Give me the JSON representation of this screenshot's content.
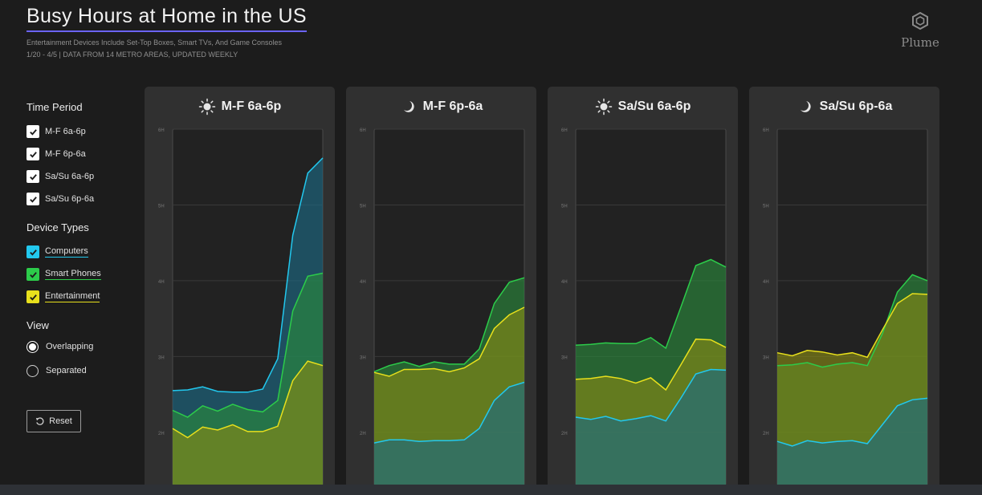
{
  "header": {
    "title": "Busy Hours at Home in the US",
    "subtitle": "Entertainment Devices Include Set-Top Boxes, Smart TVs, And Game Consoles",
    "dateline": "1/20 - 4/5 | DATA FROM 14 METRO AREAS, UPDATED WEEKLY"
  },
  "logo": {
    "text": "Plume",
    "icon": "plume-hexagon-logo"
  },
  "sidebar": {
    "time_period_title": "Time Period",
    "time_periods": [
      {
        "label": "M-F 6a-6p",
        "checked": true
      },
      {
        "label": "M-F 6p-6a",
        "checked": true
      },
      {
        "label": "Sa/Su 6a-6p",
        "checked": true
      },
      {
        "label": "Sa/Su 6p-6a",
        "checked": true
      }
    ],
    "device_types_title": "Device Types",
    "device_types": [
      {
        "label": "Computers",
        "checked": true,
        "color": "#22c8ee"
      },
      {
        "label": "Smart Phones",
        "checked": true,
        "color": "#2ccc4a"
      },
      {
        "label": "Entertainment",
        "checked": true,
        "color": "#e8e01c"
      }
    ],
    "view_title": "View",
    "views": [
      {
        "label": "Overlapping",
        "selected": true
      },
      {
        "label": "Separated",
        "selected": false
      }
    ],
    "reset_label": "Reset",
    "reset_icon": "reset-arrow-icon"
  },
  "chart_data": [
    {
      "type": "area",
      "title": "M-F 6a-6p",
      "icon": "sun-icon",
      "ylim": [
        1.3,
        6
      ],
      "yticks": [
        "2H",
        "3H",
        "4H",
        "5H",
        "6H"
      ],
      "grid": true,
      "series": [
        {
          "name": "Computers",
          "color": "#22c8ee",
          "values": [
            2.55,
            2.56,
            2.6,
            2.54,
            2.53,
            2.53,
            2.57,
            2.97,
            4.6,
            5.42,
            5.62
          ]
        },
        {
          "name": "Smart Phones",
          "color": "#2ccc4a",
          "values": [
            2.29,
            2.2,
            2.35,
            2.28,
            2.37,
            2.3,
            2.27,
            2.42,
            3.6,
            4.06,
            4.1
          ]
        },
        {
          "name": "Entertainment",
          "color": "#e8e01c",
          "values": [
            2.05,
            1.93,
            2.07,
            2.03,
            2.1,
            2.01,
            2.01,
            2.08,
            2.68,
            2.94,
            2.88
          ]
        }
      ]
    },
    {
      "type": "area",
      "title": "M-F 6p-6a",
      "icon": "moon-icon",
      "ylim": [
        1.3,
        6
      ],
      "yticks": [
        "2H",
        "3H",
        "4H",
        "5H",
        "6H"
      ],
      "grid": true,
      "series": [
        {
          "name": "Computers",
          "color": "#22c8ee",
          "values": [
            1.86,
            1.9,
            1.9,
            1.88,
            1.89,
            1.89,
            1.9,
            2.05,
            2.42,
            2.6,
            2.66
          ]
        },
        {
          "name": "Smart Phones",
          "color": "#2ccc4a",
          "values": [
            2.8,
            2.88,
            2.93,
            2.87,
            2.93,
            2.9,
            2.9,
            3.1,
            3.7,
            3.98,
            4.04
          ]
        },
        {
          "name": "Entertainment",
          "color": "#e8e01c",
          "values": [
            2.79,
            2.74,
            2.83,
            2.83,
            2.84,
            2.8,
            2.85,
            2.97,
            3.37,
            3.55,
            3.65
          ]
        }
      ]
    },
    {
      "type": "area",
      "title": "Sa/Su 6a-6p",
      "icon": "sun-icon",
      "ylim": [
        1.3,
        6
      ],
      "yticks": [
        "2H",
        "3H",
        "4H",
        "5H",
        "6H"
      ],
      "grid": true,
      "series": [
        {
          "name": "Computers",
          "color": "#22c8ee",
          "values": [
            2.2,
            2.17,
            2.21,
            2.15,
            2.18,
            2.22,
            2.15,
            2.45,
            2.77,
            2.83,
            2.82
          ]
        },
        {
          "name": "Smart Phones",
          "color": "#2ccc4a",
          "values": [
            3.15,
            3.16,
            3.18,
            3.17,
            3.17,
            3.25,
            3.11,
            3.65,
            4.2,
            4.28,
            4.18
          ]
        },
        {
          "name": "Entertainment",
          "color": "#e8e01c",
          "values": [
            2.7,
            2.71,
            2.74,
            2.71,
            2.65,
            2.72,
            2.56,
            2.89,
            3.23,
            3.22,
            3.12
          ]
        }
      ]
    },
    {
      "type": "area",
      "title": "Sa/Su 6p-6a",
      "icon": "moon-icon",
      "ylim": [
        1.3,
        6
      ],
      "yticks": [
        "2H",
        "3H",
        "4H",
        "5H",
        "6H"
      ],
      "grid": true,
      "series": [
        {
          "name": "Computers",
          "color": "#22c8ee",
          "values": [
            1.88,
            1.82,
            1.89,
            1.86,
            1.88,
            1.89,
            1.85,
            2.1,
            2.35,
            2.43,
            2.45
          ]
        },
        {
          "name": "Smart Phones",
          "color": "#2ccc4a",
          "values": [
            2.88,
            2.89,
            2.92,
            2.86,
            2.9,
            2.92,
            2.88,
            3.3,
            3.85,
            4.08,
            4.0
          ]
        },
        {
          "name": "Entertainment",
          "color": "#e8e01c",
          "values": [
            3.05,
            3.01,
            3.08,
            3.06,
            3.02,
            3.05,
            2.99,
            3.35,
            3.7,
            3.83,
            3.82
          ]
        }
      ]
    }
  ]
}
